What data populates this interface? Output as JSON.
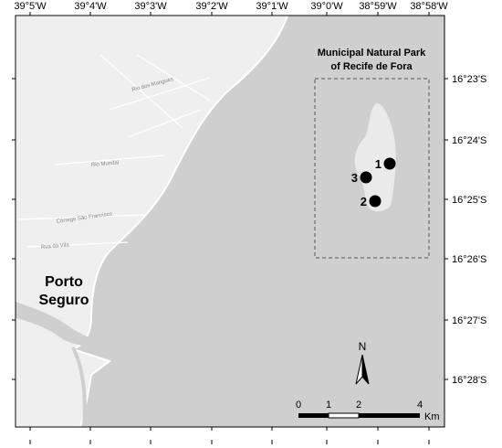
{
  "map": {
    "lon_labels": [
      "39°5'W",
      "39°4'W",
      "39°3'W",
      "39°2'W",
      "39°1'W",
      "39°0'W",
      "38°59'W",
      "38°58'W"
    ],
    "lat_labels": [
      "16°23'S",
      "16°24'S",
      "16°25'S",
      "16°26'S",
      "16°27'S",
      "16°28'S"
    ],
    "city": [
      "Porto",
      "Seguro"
    ],
    "roads": [
      "Rio dos Mangues",
      "Rio Mundaí",
      "Córrego São Francisco",
      "Rua da Vila"
    ],
    "park_title": [
      "Municipal Natural Park",
      "of Recife de Fora"
    ],
    "sites": [
      "1",
      "2",
      "3"
    ],
    "north": "N",
    "scale_labels": [
      "0",
      "1",
      "2",
      "4"
    ],
    "scale_unit": "Km"
  }
}
